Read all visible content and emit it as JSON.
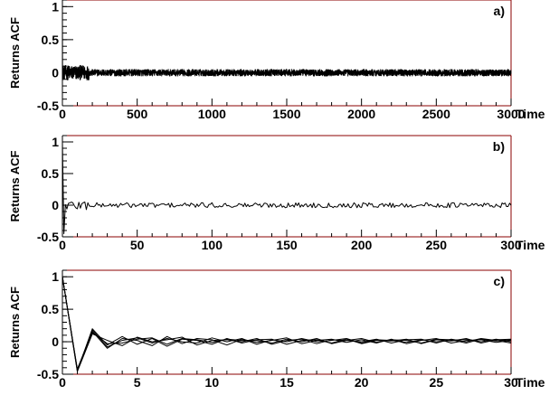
{
  "chart_data": [
    {
      "type": "line",
      "panel_label": "a)",
      "xlabel": "Time",
      "ylabel": "Returns ACF",
      "xlim": [
        0,
        3000
      ],
      "ylim": [
        -0.5,
        1.1
      ],
      "x_ticks": [
        0,
        500,
        1000,
        1500,
        2000,
        2500,
        3000
      ],
      "x_tick_labels": [
        "0",
        "500",
        "1000",
        "1500",
        "2000",
        "2500",
        "3000"
      ],
      "y_ticks": [
        -0.5,
        0,
        0.5,
        1
      ],
      "y_tick_labels": [
        "-0.5",
        "0",
        "0.5",
        "1"
      ],
      "grid": false,
      "description_of_series": "ACF values fluctuating around 0 with amplitude about 0.05 over lags 0 to 3000; value 1 at lag 0",
      "noise_amplitude": 0.05,
      "start_value": 1
    },
    {
      "type": "line",
      "panel_label": "b)",
      "xlabel": "Time",
      "ylabel": "Returns ACF",
      "xlim": [
        0,
        300
      ],
      "ylim": [
        -0.5,
        1.1
      ],
      "x_ticks": [
        0,
        50,
        100,
        150,
        200,
        250,
        300
      ],
      "x_tick_labels": [
        "0",
        "50",
        "100",
        "150",
        "200",
        "250",
        "300"
      ],
      "y_ticks": [
        -0.5,
        0,
        0.5,
        1
      ],
      "y_tick_labels": [
        "-0.5",
        "0",
        "0.5",
        "1"
      ],
      "grid": false,
      "noise_amplitude": 0.04,
      "start_value": 1,
      "first_lag_value": -0.45
    },
    {
      "type": "line",
      "panel_label": "c)",
      "xlabel": "Time",
      "ylabel": "Returns ACF",
      "xlim": [
        0,
        30
      ],
      "ylim": [
        -0.5,
        1.1
      ],
      "x_ticks": [
        0,
        5,
        10,
        15,
        20,
        25,
        30
      ],
      "x_tick_labels": [
        "0",
        "5",
        "10",
        "15",
        "20",
        "25",
        "30"
      ],
      "y_ticks": [
        -0.5,
        0,
        0.5,
        1
      ],
      "y_tick_labels": [
        "-0.5",
        "0",
        "0.5",
        "1"
      ],
      "grid": false,
      "x": [
        0,
        1,
        2,
        3,
        4,
        5,
        6,
        7,
        8,
        9,
        10,
        11,
        12,
        13,
        14,
        15,
        16,
        17,
        18,
        19,
        20,
        21,
        22,
        23,
        24,
        25,
        26,
        27,
        28,
        29,
        30
      ],
      "series": [
        {
          "values": [
            1,
            -0.45,
            0.2,
            -0.05,
            0.08,
            -0.04,
            0.05,
            -0.07,
            0.04,
            0.02,
            -0.04,
            0.05,
            -0.02,
            0.03,
            0.04,
            -0.04,
            0.02,
            0.03,
            -0.02,
            0.04,
            -0.03,
            0.02,
            0.01,
            0.04,
            -0.03,
            0.03,
            0.01,
            0.05,
            -0.02,
            0.03,
            0.04
          ]
        },
        {
          "values": [
            1,
            -0.42,
            0.16,
            -0.1,
            0.05,
            0.02,
            -0.06,
            0.08,
            -0.03,
            0.05,
            0.03,
            -0.05,
            0.04,
            -0.01,
            0.02,
            0.06,
            -0.03,
            0.02,
            0.04,
            -0.01,
            0.03,
            -0.02,
            0.04,
            -0.03,
            0.02,
            0.05,
            -0.02,
            0.02,
            0.03,
            -0.01,
            0.02
          ]
        },
        {
          "values": [
            1,
            -0.46,
            0.12,
            0.02,
            -0.06,
            0.07,
            0.0,
            0.03,
            0.07,
            -0.05,
            0.02,
            0.03,
            0.0,
            0.05,
            -0.04,
            0.02,
            0.04,
            -0.03,
            0.03,
            0.02,
            0.0,
            0.04,
            -0.02,
            0.03,
            0.04,
            -0.02,
            0.04,
            0.0,
            0.05,
            0.02,
            -0.02
          ]
        },
        {
          "values": [
            1,
            -0.44,
            0.18,
            -0.08,
            0.02,
            0.06,
            -0.02,
            0.05,
            0.0,
            -0.02,
            0.06,
            0.0,
            0.05,
            -0.04,
            0.03,
            0.0,
            0.05,
            0.0,
            0.02,
            0.05,
            -0.02,
            0.03,
            0.02,
            -0.01,
            0.03,
            0.0,
            0.02,
            0.04,
            0.0,
            0.04,
            0.0
          ]
        },
        {
          "values": [
            1,
            -0.43,
            0.14,
            -0.03,
            -0.02,
            0.04,
            0.06,
            -0.04,
            0.05,
            0.03,
            -0.01,
            0.04,
            0.02,
            0.02,
            -0.02,
            0.04,
            0.0,
            0.05,
            -0.03,
            0.02,
            0.05,
            -0.01,
            0.03,
            0.02,
            -0.02,
            0.04,
            0.03,
            -0.02,
            0.04,
            0.01,
            0.03
          ]
        }
      ]
    }
  ]
}
